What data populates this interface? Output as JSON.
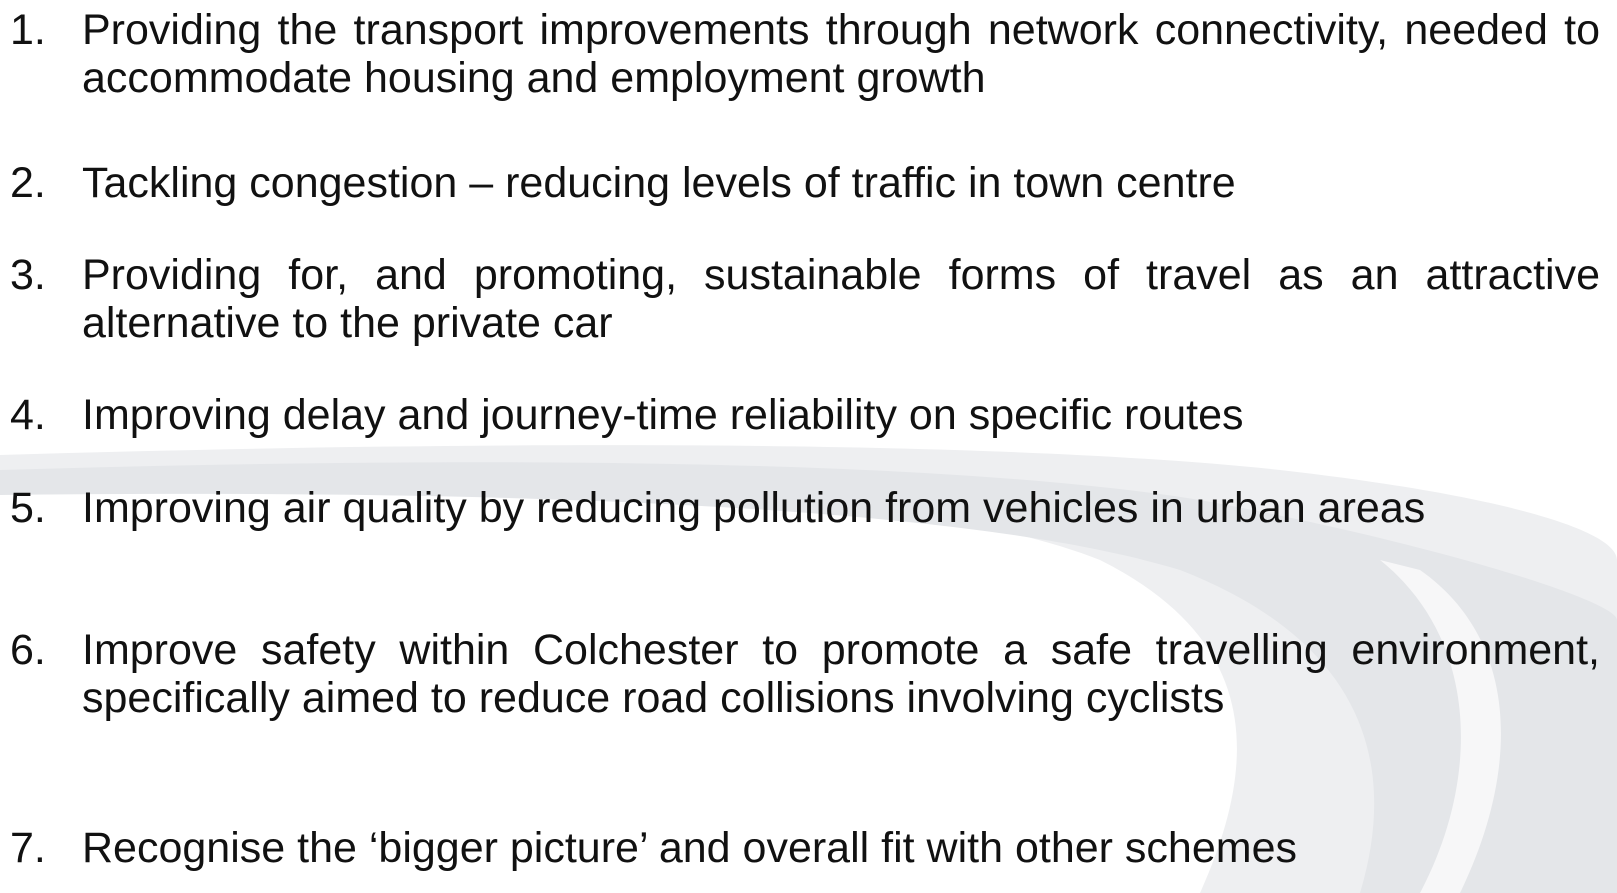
{
  "items": [
    {
      "number": "1.",
      "text": "Providing the transport improvements through network connectivity, needed to accommodate housing and employment growth"
    },
    {
      "number": "2.",
      "text": "Tackling congestion – reducing levels of traffic in town centre"
    },
    {
      "number": "3.",
      "text": "Providing for, and promoting, sustainable forms of travel as an attractive alternative to the private car"
    },
    {
      "number": "4.",
      "text": "Improving delay and journey-time reliability on specific routes"
    },
    {
      "number": "5.",
      "text": "Improving air quality by reducing pollution from vehicles in urban areas"
    },
    {
      "number": "6.",
      "text": "Improve safety within Colchester to promote a safe travelling environment, specifically aimed to reduce road collisions involving cyclists"
    },
    {
      "number": "7.",
      "text": "Recognise the ‘bigger picture’ and overall fit with other schemes"
    }
  ]
}
